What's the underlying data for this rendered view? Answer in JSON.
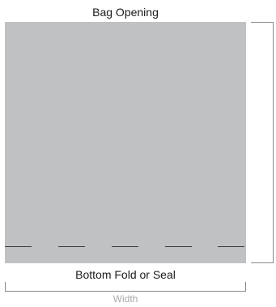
{
  "labels": {
    "top": "Bag Opening",
    "bottom": "Bottom Fold or Seal",
    "width": "Width"
  },
  "colors": {
    "bag_fill": "#c0c1c3",
    "dimension_line": "#888888",
    "width_text": "#a9aaac"
  }
}
